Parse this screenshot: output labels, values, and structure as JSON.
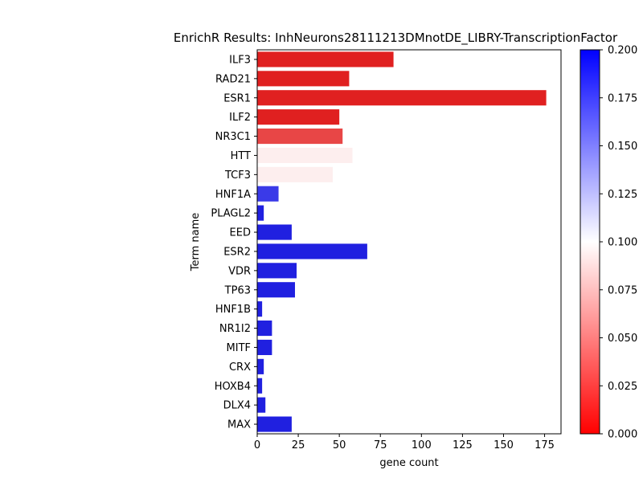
{
  "chart_data": {
    "type": "bar",
    "orientation": "horizontal",
    "title": "EnrichR Results: InhNeurons28111213DMnotDE_LIBRY-TranscriptionFactor",
    "xlabel": "gene count",
    "ylabel": "Term name",
    "xlim": [
      0,
      185
    ],
    "xticks": [
      0,
      25,
      50,
      75,
      100,
      125,
      150,
      175
    ],
    "grid": false,
    "categories": [
      "ILF3",
      "RAD21",
      "ESR1",
      "ILF2",
      "NR3C1",
      "HTT",
      "TCF3",
      "HNF1A",
      "PLAGL2",
      "EED",
      "ESR2",
      "VDR",
      "TP63",
      "HNF1B",
      "NR1I2",
      "MITF",
      "CRX",
      "HOXB4",
      "DLX4",
      "MAX"
    ],
    "values": [
      83,
      56,
      176,
      50,
      52,
      58,
      46,
      13,
      4,
      21,
      67,
      24,
      23,
      3,
      9,
      9,
      4,
      3,
      5,
      21
    ],
    "bar_colors": [
      "#e02020",
      "#e02020",
      "#e02020",
      "#e02020",
      "#e84646",
      "#fdeeee",
      "#fdeeee",
      "#3a3ae8",
      "#2020e0",
      "#2020e0",
      "#2020e0",
      "#2020e0",
      "#2020e0",
      "#2020e0",
      "#2020e0",
      "#2020e0",
      "#2020e0",
      "#2020e0",
      "#2020e0",
      "#2020e0"
    ],
    "colorbar": {
      "range": [
        0.0,
        0.2
      ],
      "ticks": [
        "0.000",
        "0.025",
        "0.050",
        "0.075",
        "0.100",
        "0.125",
        "0.150",
        "0.175",
        "0.200"
      ],
      "colors": [
        "#ff0000",
        "#ffffff",
        "#0000ff"
      ]
    }
  }
}
